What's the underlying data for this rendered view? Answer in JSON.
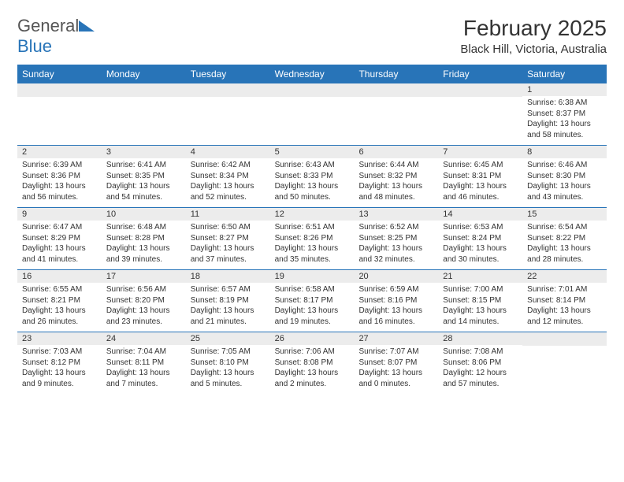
{
  "logo": {
    "general": "General",
    "blue": "Blue"
  },
  "title": "February 2025",
  "location": "Black Hill, Victoria, Australia",
  "dayNames": [
    "Sunday",
    "Monday",
    "Tuesday",
    "Wednesday",
    "Thursday",
    "Friday",
    "Saturday"
  ],
  "colors": {
    "header_bg": "#2874b8",
    "row_number_bg": "#ececec",
    "border": "#2874b8"
  },
  "weeks": [
    [
      null,
      null,
      null,
      null,
      null,
      null,
      {
        "n": "1",
        "sunrise": "Sunrise: 6:38 AM",
        "sunset": "Sunset: 8:37 PM",
        "daylight": "Daylight: 13 hours and 58 minutes."
      }
    ],
    [
      {
        "n": "2",
        "sunrise": "Sunrise: 6:39 AM",
        "sunset": "Sunset: 8:36 PM",
        "daylight": "Daylight: 13 hours and 56 minutes."
      },
      {
        "n": "3",
        "sunrise": "Sunrise: 6:41 AM",
        "sunset": "Sunset: 8:35 PM",
        "daylight": "Daylight: 13 hours and 54 minutes."
      },
      {
        "n": "4",
        "sunrise": "Sunrise: 6:42 AM",
        "sunset": "Sunset: 8:34 PM",
        "daylight": "Daylight: 13 hours and 52 minutes."
      },
      {
        "n": "5",
        "sunrise": "Sunrise: 6:43 AM",
        "sunset": "Sunset: 8:33 PM",
        "daylight": "Daylight: 13 hours and 50 minutes."
      },
      {
        "n": "6",
        "sunrise": "Sunrise: 6:44 AM",
        "sunset": "Sunset: 8:32 PM",
        "daylight": "Daylight: 13 hours and 48 minutes."
      },
      {
        "n": "7",
        "sunrise": "Sunrise: 6:45 AM",
        "sunset": "Sunset: 8:31 PM",
        "daylight": "Daylight: 13 hours and 46 minutes."
      },
      {
        "n": "8",
        "sunrise": "Sunrise: 6:46 AM",
        "sunset": "Sunset: 8:30 PM",
        "daylight": "Daylight: 13 hours and 43 minutes."
      }
    ],
    [
      {
        "n": "9",
        "sunrise": "Sunrise: 6:47 AM",
        "sunset": "Sunset: 8:29 PM",
        "daylight": "Daylight: 13 hours and 41 minutes."
      },
      {
        "n": "10",
        "sunrise": "Sunrise: 6:48 AM",
        "sunset": "Sunset: 8:28 PM",
        "daylight": "Daylight: 13 hours and 39 minutes."
      },
      {
        "n": "11",
        "sunrise": "Sunrise: 6:50 AM",
        "sunset": "Sunset: 8:27 PM",
        "daylight": "Daylight: 13 hours and 37 minutes."
      },
      {
        "n": "12",
        "sunrise": "Sunrise: 6:51 AM",
        "sunset": "Sunset: 8:26 PM",
        "daylight": "Daylight: 13 hours and 35 minutes."
      },
      {
        "n": "13",
        "sunrise": "Sunrise: 6:52 AM",
        "sunset": "Sunset: 8:25 PM",
        "daylight": "Daylight: 13 hours and 32 minutes."
      },
      {
        "n": "14",
        "sunrise": "Sunrise: 6:53 AM",
        "sunset": "Sunset: 8:24 PM",
        "daylight": "Daylight: 13 hours and 30 minutes."
      },
      {
        "n": "15",
        "sunrise": "Sunrise: 6:54 AM",
        "sunset": "Sunset: 8:22 PM",
        "daylight": "Daylight: 13 hours and 28 minutes."
      }
    ],
    [
      {
        "n": "16",
        "sunrise": "Sunrise: 6:55 AM",
        "sunset": "Sunset: 8:21 PM",
        "daylight": "Daylight: 13 hours and 26 minutes."
      },
      {
        "n": "17",
        "sunrise": "Sunrise: 6:56 AM",
        "sunset": "Sunset: 8:20 PM",
        "daylight": "Daylight: 13 hours and 23 minutes."
      },
      {
        "n": "18",
        "sunrise": "Sunrise: 6:57 AM",
        "sunset": "Sunset: 8:19 PM",
        "daylight": "Daylight: 13 hours and 21 minutes."
      },
      {
        "n": "19",
        "sunrise": "Sunrise: 6:58 AM",
        "sunset": "Sunset: 8:17 PM",
        "daylight": "Daylight: 13 hours and 19 minutes."
      },
      {
        "n": "20",
        "sunrise": "Sunrise: 6:59 AM",
        "sunset": "Sunset: 8:16 PM",
        "daylight": "Daylight: 13 hours and 16 minutes."
      },
      {
        "n": "21",
        "sunrise": "Sunrise: 7:00 AM",
        "sunset": "Sunset: 8:15 PM",
        "daylight": "Daylight: 13 hours and 14 minutes."
      },
      {
        "n": "22",
        "sunrise": "Sunrise: 7:01 AM",
        "sunset": "Sunset: 8:14 PM",
        "daylight": "Daylight: 13 hours and 12 minutes."
      }
    ],
    [
      {
        "n": "23",
        "sunrise": "Sunrise: 7:03 AM",
        "sunset": "Sunset: 8:12 PM",
        "daylight": "Daylight: 13 hours and 9 minutes."
      },
      {
        "n": "24",
        "sunrise": "Sunrise: 7:04 AM",
        "sunset": "Sunset: 8:11 PM",
        "daylight": "Daylight: 13 hours and 7 minutes."
      },
      {
        "n": "25",
        "sunrise": "Sunrise: 7:05 AM",
        "sunset": "Sunset: 8:10 PM",
        "daylight": "Daylight: 13 hours and 5 minutes."
      },
      {
        "n": "26",
        "sunrise": "Sunrise: 7:06 AM",
        "sunset": "Sunset: 8:08 PM",
        "daylight": "Daylight: 13 hours and 2 minutes."
      },
      {
        "n": "27",
        "sunrise": "Sunrise: 7:07 AM",
        "sunset": "Sunset: 8:07 PM",
        "daylight": "Daylight: 13 hours and 0 minutes."
      },
      {
        "n": "28",
        "sunrise": "Sunrise: 7:08 AM",
        "sunset": "Sunset: 8:06 PM",
        "daylight": "Daylight: 12 hours and 57 minutes."
      },
      null
    ]
  ]
}
